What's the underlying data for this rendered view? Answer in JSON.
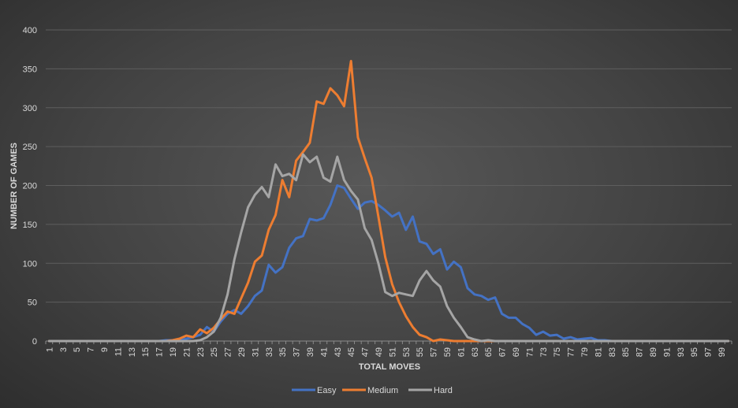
{
  "chart_data": {
    "type": "line",
    "title": "",
    "xlabel": "TOTAL MOVES",
    "ylabel": "NUMBER OF GAMES",
    "xlim": [
      1,
      100
    ],
    "ylim": [
      0,
      400
    ],
    "y_ticks": [
      0,
      50,
      100,
      150,
      200,
      250,
      300,
      350,
      400
    ],
    "x_tick_labels": [
      "1",
      "3",
      "5",
      "7",
      "9",
      "11",
      "13",
      "15",
      "17",
      "19",
      "21",
      "23",
      "25",
      "27",
      "29",
      "31",
      "33",
      "35",
      "37",
      "39",
      "41",
      "43",
      "45",
      "47",
      "49",
      "51",
      "53",
      "55",
      "57",
      "59",
      "61",
      "63",
      "65",
      "67",
      "69",
      "71",
      "73",
      "75",
      "77",
      "79",
      "81",
      "83",
      "85",
      "87",
      "89",
      "91",
      "93",
      "95",
      "97",
      "99"
    ],
    "grid": true,
    "legend": "bottom",
    "series": [
      {
        "name": "Easy",
        "color": "#4472c4",
        "x": [
          17,
          18,
          19,
          20,
          21,
          22,
          23,
          24,
          25,
          26,
          27,
          28,
          29,
          30,
          31,
          32,
          33,
          34,
          35,
          36,
          37,
          38,
          39,
          40,
          41,
          42,
          43,
          44,
          45,
          46,
          47,
          48,
          49,
          50,
          51,
          52,
          53,
          54,
          55,
          56,
          57,
          58,
          59,
          60,
          61,
          62,
          63,
          64,
          65,
          66,
          67,
          68,
          69,
          70,
          71,
          72,
          73,
          74,
          75,
          76,
          77,
          78,
          79,
          80,
          81,
          82,
          83
        ],
        "y": [
          0,
          1,
          1,
          2,
          3,
          5,
          8,
          18,
          12,
          25,
          35,
          40,
          35,
          45,
          58,
          65,
          98,
          88,
          95,
          120,
          132,
          135,
          157,
          155,
          158,
          175,
          200,
          197,
          183,
          170,
          178,
          180,
          175,
          168,
          160,
          165,
          143,
          160,
          128,
          125,
          112,
          118,
          92,
          102,
          95,
          68,
          60,
          58,
          53,
          56,
          35,
          30,
          30,
          22,
          17,
          8,
          12,
          7,
          8,
          3,
          5,
          2,
          3,
          4,
          1,
          1,
          0
        ]
      },
      {
        "name": "Medium",
        "color": "#ed7d31",
        "x": [
          17,
          18,
          19,
          20,
          21,
          22,
          23,
          24,
          25,
          26,
          27,
          28,
          29,
          30,
          31,
          32,
          33,
          34,
          35,
          36,
          37,
          38,
          39,
          40,
          41,
          42,
          43,
          44,
          45,
          46,
          47,
          48,
          49,
          50,
          51,
          52,
          53,
          54,
          55,
          56,
          57,
          58,
          59,
          60,
          61,
          62,
          63
        ],
        "y": [
          0,
          0,
          1,
          3,
          7,
          5,
          15,
          10,
          17,
          28,
          38,
          35,
          55,
          75,
          102,
          110,
          143,
          162,
          207,
          185,
          232,
          243,
          255,
          308,
          305,
          325,
          316,
          302,
          360,
          262,
          235,
          210,
          160,
          108,
          73,
          50,
          32,
          18,
          8,
          5,
          0,
          2,
          1,
          0,
          0,
          0,
          0
        ],
        "data_labels": []
      },
      {
        "name": "Hard",
        "color": "#a5a5a5",
        "x": [
          20,
          21,
          22,
          23,
          24,
          25,
          26,
          27,
          28,
          29,
          30,
          31,
          32,
          33,
          34,
          35,
          36,
          37,
          38,
          39,
          40,
          41,
          42,
          43,
          44,
          45,
          46,
          47,
          48,
          49,
          50,
          51,
          52,
          53,
          54,
          55,
          56,
          57,
          58,
          59,
          60,
          61,
          62,
          63,
          64,
          65,
          66,
          67,
          68
        ],
        "y": [
          0,
          0,
          0,
          1,
          5,
          12,
          30,
          60,
          105,
          140,
          172,
          188,
          198,
          185,
          227,
          212,
          215,
          207,
          240,
          230,
          237,
          210,
          205,
          237,
          207,
          193,
          182,
          145,
          130,
          100,
          63,
          58,
          62,
          60,
          58,
          78,
          90,
          78,
          70,
          45,
          30,
          18,
          5,
          2,
          0,
          1,
          0,
          0,
          0
        ]
      }
    ]
  }
}
